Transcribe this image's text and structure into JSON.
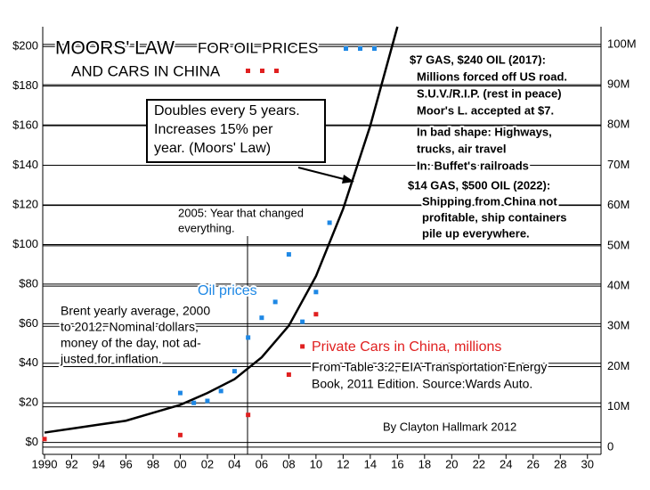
{
  "chart_data": {
    "type": "scatter",
    "title": "MOORS' LAW",
    "subtitle": "FOR OIL PRICES",
    "subtitle_2": "AND CARS IN CHINA",
    "xlim": [
      1990,
      2031
    ],
    "xticks": [
      1990,
      {
        "value": 1992,
        "label": "92"
      },
      {
        "value": 1994,
        "label": "94"
      },
      {
        "value": 1996,
        "label": "96"
      },
      {
        "value": 1998,
        "label": "98"
      },
      {
        "value": 2000,
        "label": "00"
      },
      {
        "value": 2002,
        "label": "02"
      },
      {
        "value": 2004,
        "label": "04"
      },
      {
        "value": 2006,
        "label": "06"
      },
      {
        "value": 2008,
        "label": "08"
      },
      {
        "value": 2010,
        "label": "10"
      },
      {
        "value": 2012,
        "label": "12"
      },
      {
        "value": 2014,
        "label": "14"
      },
      {
        "value": 2016,
        "label": "16"
      },
      {
        "value": 2018,
        "label": "18"
      },
      {
        "value": 2020,
        "label": "20"
      },
      {
        "value": 2022,
        "label": "22"
      },
      {
        "value": 2024,
        "label": "24"
      },
      {
        "value": 2026,
        "label": "26"
      },
      {
        "value": 2028,
        "label": "28"
      },
      {
        "value": 2030,
        "label": "30"
      }
    ],
    "ylim": [
      -6,
      210
    ],
    "yticks": [
      {
        "value": 0,
        "label": "$0"
      },
      {
        "value": 20,
        "label": "$20"
      },
      {
        "value": 40,
        "label": "$40"
      },
      {
        "value": 60,
        "label": "$60"
      },
      {
        "value": 80,
        "label": "$80"
      },
      {
        "value": 100,
        "label": "$100"
      },
      {
        "value": 120,
        "label": "$120"
      },
      {
        "value": 140,
        "label": "$140"
      },
      {
        "value": 160,
        "label": "$160"
      },
      {
        "value": 180,
        "label": "$180"
      },
      {
        "value": 200,
        "label": "$200"
      }
    ],
    "y2lim": [
      -1.8,
      104.4
    ],
    "y2ticks": [
      0,
      {
        "value": 10,
        "label": "10M"
      },
      {
        "value": 20,
        "label": "20M"
      },
      {
        "value": 30,
        "label": "30M"
      },
      {
        "value": 40,
        "label": "40M"
      },
      {
        "value": 50,
        "label": "50M"
      },
      {
        "value": 60,
        "label": "60M"
      },
      {
        "value": 70,
        "label": "70M"
      },
      {
        "value": 80,
        "label": "80M"
      },
      {
        "value": 90,
        "label": "90M"
      },
      {
        "value": 100,
        "label": "100M"
      }
    ],
    "grid": true,
    "series": [
      {
        "name": "Oil prices",
        "color": "#1e88e5",
        "x": [
          2000,
          2001,
          2002,
          2003,
          2004,
          2005,
          2006,
          2007,
          2008,
          2009,
          2010,
          2011
        ],
        "values": [
          25,
          20,
          21,
          26,
          36,
          53,
          63,
          71,
          95,
          61,
          76,
          111
        ]
      },
      {
        "name": "Private Cars in China, millions",
        "color": "#e02020",
        "axis": "y2",
        "x": [
          1990,
          2000,
          2005,
          2008,
          2009,
          2010
        ],
        "values": [
          2,
          3,
          8,
          18,
          25,
          33
        ]
      },
      {
        "type": "line",
        "color": "#000000",
        "x": [
          1990,
          1992,
          1994,
          1996,
          1998,
          2000,
          2002,
          2004,
          2006,
          2008,
          2010,
          2012,
          2014,
          2016
        ],
        "values": [
          5,
          7,
          9,
          11,
          15,
          19,
          25,
          32,
          43,
          59,
          84,
          118,
          160,
          210
        ]
      }
    ],
    "annotations": [
      {
        "lines": [
          "Doubles every 5 years.",
          "Increases 15% per",
          "year. (Moors' Law)"
        ]
      },
      {
        "lines": [
          "$7 GAS, $240 OIL (2017):",
          "Millions forced off US road.",
          "S.U.V./R.I.P. (rest in peace)",
          "Moor's L. accepted at $7.",
          "In bad shape: Highways,",
          "trucks, air travel",
          "In: Buffet's railroads"
        ]
      },
      {
        "lines": [
          "$14 GAS, $500 OIL (2022):",
          "Shipping from China not",
          "profitable, ship containers",
          "pile up everywhere."
        ]
      },
      {
        "lines": [
          "2005: Year that changed",
          "everything."
        ]
      },
      {
        "lines": [
          "Brent yearly average, 2000",
          "to 2012.  Nominal dollars,",
          "money of the day, not ad-",
          "justed for inflation."
        ]
      },
      {
        "lines": [
          "From Table 3.2, EIA Transportation Energy",
          "Book, 2011 Edition.  Source:Wards Auto."
        ]
      },
      {
        "lines": [
          "By Clayton Hallmark   2012"
        ]
      }
    ]
  }
}
